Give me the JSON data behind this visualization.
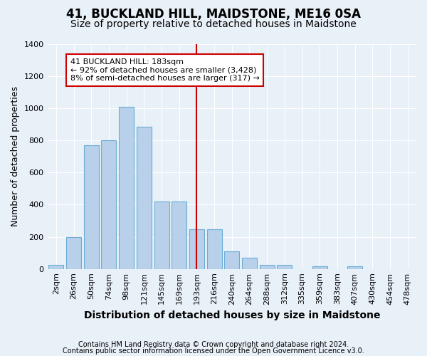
{
  "title": "41, BUCKLAND HILL, MAIDSTONE, ME16 0SA",
  "subtitle": "Size of property relative to detached houses in Maidstone",
  "xlabel": "Distribution of detached houses by size in Maidstone",
  "ylabel": "Number of detached properties",
  "footer1": "Contains HM Land Registry data © Crown copyright and database right 2024.",
  "footer2": "Contains public sector information licensed under the Open Government Licence v3.0.",
  "bar_labels": [
    "2sqm",
    "26sqm",
    "50sqm",
    "74sqm",
    "98sqm",
    "121sqm",
    "145sqm",
    "169sqm",
    "193sqm",
    "216sqm",
    "240sqm",
    "264sqm",
    "288sqm",
    "312sqm",
    "335sqm",
    "359sqm",
    "383sqm",
    "407sqm",
    "430sqm",
    "454sqm",
    "478sqm"
  ],
  "bar_values": [
    25,
    200,
    770,
    800,
    1010,
    885,
    420,
    420,
    245,
    245,
    110,
    70,
    25,
    25,
    0,
    15,
    0,
    15,
    0,
    0,
    0
  ],
  "bar_color": "#b8d0ea",
  "bar_edge_color": "#6aadd5",
  "background_color": "#e8f0f8",
  "grid_color": "#ffffff",
  "vline_color": "#cc0000",
  "vline_index": 8,
  "annotation_text": "41 BUCKLAND HILL: 183sqm\n← 92% of detached houses are smaller (3,428)\n8% of semi-detached houses are larger (317) →",
  "annotation_box_color": "#ffffff",
  "annotation_box_edge": "#cc0000",
  "ylim": [
    0,
    1400
  ],
  "yticks": [
    0,
    200,
    400,
    600,
    800,
    1000,
    1200,
    1400
  ],
  "title_fontsize": 12,
  "subtitle_fontsize": 10,
  "xlabel_fontsize": 10,
  "ylabel_fontsize": 9,
  "tick_fontsize": 8,
  "annotation_fontsize": 8,
  "footer_fontsize": 7
}
